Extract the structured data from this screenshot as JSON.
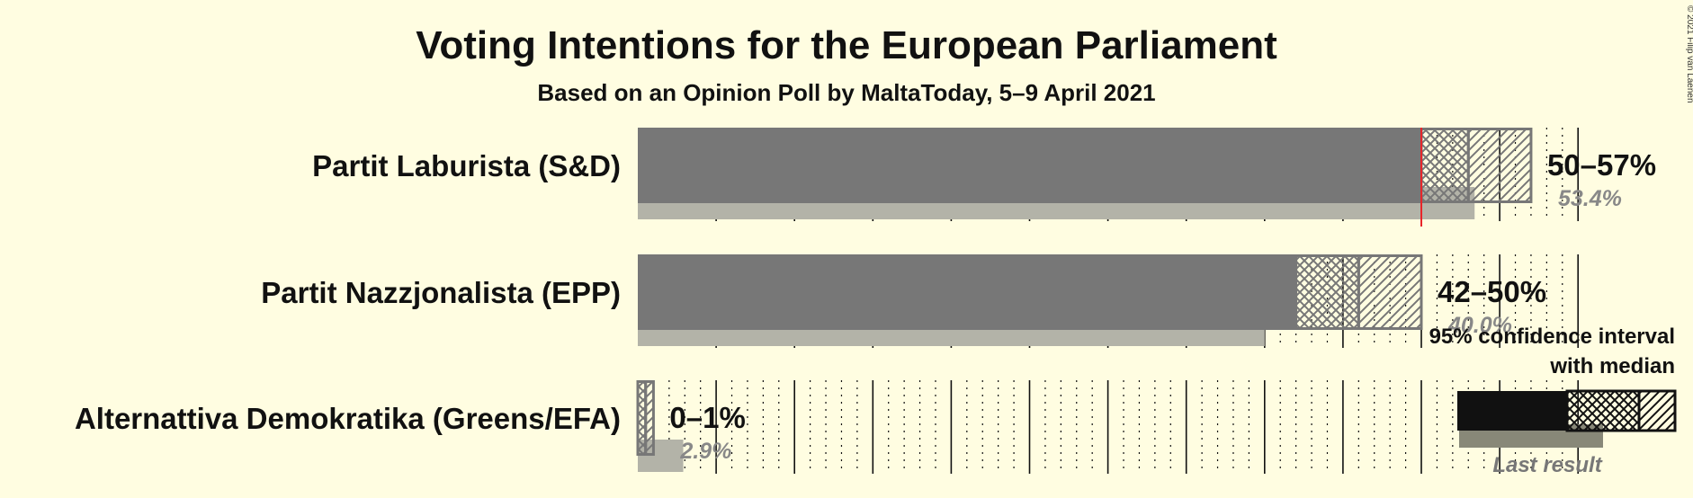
{
  "title": "Voting Intentions for the European Parliament",
  "subtitle": "Based on an Opinion Poll by MaltaToday, 5–9 April 2021",
  "copyright": "© 2021 Filip van Laenen",
  "legend": {
    "ci_line1": "95% confidence interval",
    "ci_line2": "with median",
    "last_result": "Last result"
  },
  "colors": {
    "background": "#fffde1",
    "bar": "#777777",
    "last_result": "#b3b3a8",
    "majority_line": "#e8252a",
    "legend_solid": "#111111",
    "legend_last": "#888878"
  },
  "chart_data": {
    "type": "bar",
    "orientation": "horizontal",
    "categories": [
      "Partit Laburista (S&D)",
      "Partit Nazzjonalista (EPP)",
      "Alternattiva Demokratika (Greens/EFA)"
    ],
    "ci_low": [
      50,
      42,
      0
    ],
    "median": [
      53,
      46,
      0.5
    ],
    "ci_high": [
      57,
      50,
      1
    ],
    "range_labels": [
      "50–57%",
      "42–50%",
      "0–1%"
    ],
    "last_result": [
      53.4,
      40.0,
      2.9
    ],
    "last_result_labels": [
      "53.4%",
      "40.0%",
      "2.9%"
    ],
    "majority_threshold": 50,
    "xlim": [
      0,
      60
    ],
    "grid": true
  }
}
